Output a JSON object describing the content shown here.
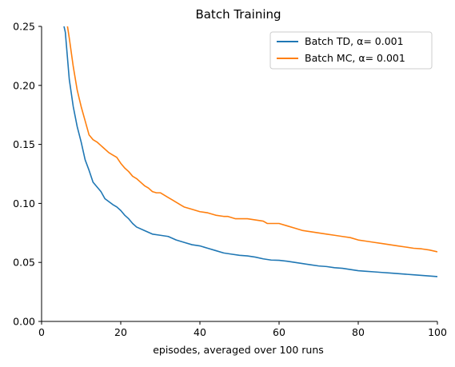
{
  "chart_data": {
    "type": "line",
    "title": "Batch Training",
    "xlabel": "episodes, averaged over 100 runs",
    "ylabel": "",
    "xlim": [
      0,
      100
    ],
    "ylim": [
      0.0,
      0.25
    ],
    "xticks": [
      "0",
      "20",
      "40",
      "60",
      "80",
      "100"
    ],
    "yticks": [
      "0.00",
      "0.05",
      "0.10",
      "0.15",
      "0.20",
      "0.25"
    ],
    "grid": false,
    "legend_position": "top-right",
    "series": [
      {
        "name": "Batch TD, α= 0.001",
        "color": "#1f77b4",
        "x": [
          5,
          6,
          7,
          8,
          9,
          10,
          11,
          12,
          13,
          14,
          15,
          16,
          18,
          19,
          20,
          21,
          22,
          23,
          24,
          26,
          28,
          30,
          32,
          34,
          36,
          38,
          40,
          42,
          44,
          46,
          48,
          50,
          52,
          54,
          56,
          58,
          60,
          62,
          64,
          66,
          68,
          70,
          72,
          74,
          76,
          78,
          80,
          82,
          84,
          86,
          88,
          90,
          92,
          94,
          96,
          98,
          100
        ],
        "y": [
          0.26,
          0.245,
          0.205,
          0.182,
          0.165,
          0.152,
          0.137,
          0.128,
          0.118,
          0.114,
          0.11,
          0.104,
          0.099,
          0.097,
          0.094,
          0.09,
          0.087,
          0.083,
          0.08,
          0.077,
          0.074,
          0.073,
          0.072,
          0.069,
          0.067,
          0.065,
          0.064,
          0.062,
          0.06,
          0.058,
          0.057,
          0.056,
          0.0555,
          0.0545,
          0.053,
          0.052,
          0.0518,
          0.051,
          0.05,
          0.049,
          0.048,
          0.047,
          0.0465,
          0.0455,
          0.045,
          0.044,
          0.043,
          0.0425,
          0.042,
          0.0415,
          0.041,
          0.0405,
          0.04,
          0.0395,
          0.039,
          0.0385,
          0.038
        ]
      },
      {
        "name": "Batch MC, α= 0.001",
        "color": "#ff7f0e",
        "x": [
          6,
          7,
          8,
          9,
          10,
          11,
          12,
          13,
          14,
          15,
          16,
          17,
          18,
          19,
          20,
          21,
          22,
          23,
          24,
          25,
          26,
          27,
          28,
          29,
          30,
          31,
          32,
          33,
          34,
          35,
          36,
          38,
          40,
          42,
          44,
          46,
          47,
          48,
          49,
          50,
          52,
          54,
          56,
          57,
          58,
          60,
          62,
          64,
          66,
          68,
          70,
          72,
          74,
          76,
          78,
          80,
          82,
          84,
          86,
          88,
          90,
          92,
          94,
          96,
          98,
          100
        ],
        "y": [
          0.262,
          0.24,
          0.216,
          0.196,
          0.182,
          0.17,
          0.158,
          0.154,
          0.152,
          0.149,
          0.146,
          0.143,
          0.141,
          0.139,
          0.134,
          0.13,
          0.127,
          0.123,
          0.121,
          0.118,
          0.115,
          0.113,
          0.11,
          0.109,
          0.109,
          0.107,
          0.105,
          0.103,
          0.101,
          0.099,
          0.097,
          0.095,
          0.093,
          0.092,
          0.09,
          0.089,
          0.089,
          0.088,
          0.087,
          0.087,
          0.087,
          0.086,
          0.085,
          0.083,
          0.083,
          0.083,
          0.081,
          0.079,
          0.077,
          0.076,
          0.075,
          0.074,
          0.073,
          0.072,
          0.071,
          0.069,
          0.068,
          0.067,
          0.066,
          0.065,
          0.064,
          0.063,
          0.062,
          0.0615,
          0.0605,
          0.059
        ]
      }
    ]
  }
}
